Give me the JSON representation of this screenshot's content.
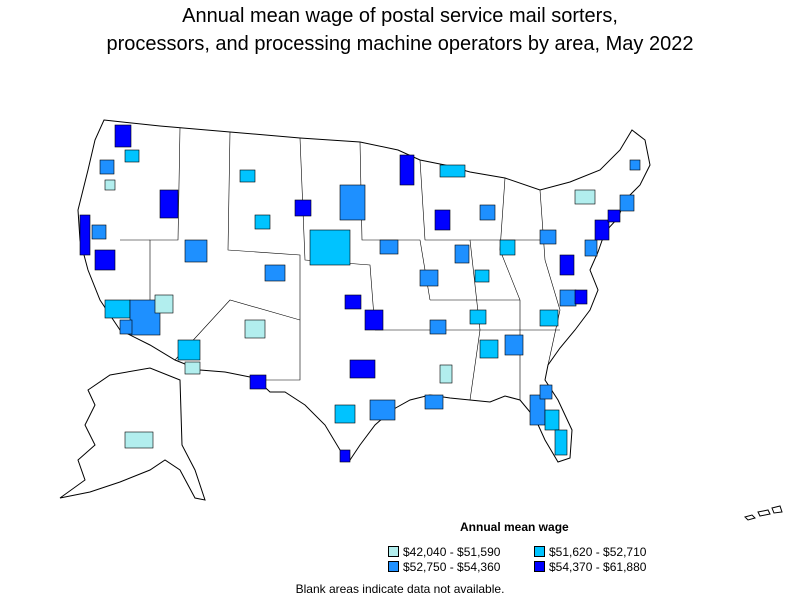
{
  "title": {
    "line1": "Annual mean wage of postal service mail sorters,",
    "line2": "processors, and processing machine operators by area, May 2022"
  },
  "legend": {
    "title": "Annual mean wage",
    "items": [
      {
        "label": "$42,040 - $51,590",
        "color": "#b2eeee"
      },
      {
        "label": "$51,620 - $52,710",
        "color": "#00c3ff"
      },
      {
        "label": "$52,750 - $54,360",
        "color": "#1e90ff"
      },
      {
        "label": "$54,370 - $61,880",
        "color": "#0000ff"
      }
    ]
  },
  "footnote": "Blank areas indicate data not available.",
  "colors": {
    "no_data": "#ffffff",
    "border": "#000000"
  }
}
